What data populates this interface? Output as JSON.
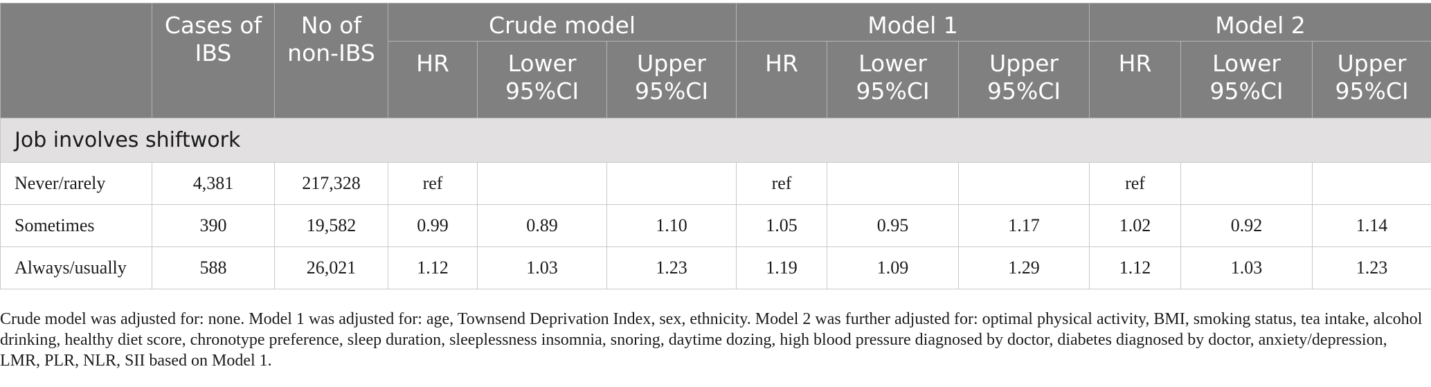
{
  "table": {
    "header": {
      "row_label_blank": "",
      "cases_of_ibs": "Cases of IBS",
      "no_of_non_ibs": "No of non-IBS",
      "models": [
        "Crude model",
        "Model 1",
        "Model 2"
      ],
      "sub_columns": [
        "HR",
        "Lower 95%CI",
        "Upper 95%CI"
      ]
    },
    "section_title": "Job involves shiftwork",
    "rows": [
      {
        "label": "Never/rarely",
        "cases": "4,381",
        "non_ibs": "217,328",
        "crude": [
          "ref",
          "",
          ""
        ],
        "model1": [
          "ref",
          "",
          ""
        ],
        "model2": [
          "ref",
          "",
          ""
        ]
      },
      {
        "label": "Sometimes",
        "cases": "390",
        "non_ibs": "19,582",
        "crude": [
          "0.99",
          "0.89",
          "1.10"
        ],
        "model1": [
          "1.05",
          "0.95",
          "1.17"
        ],
        "model2": [
          "1.02",
          "0.92",
          "1.14"
        ]
      },
      {
        "label": "Always/usually",
        "cases": "588",
        "non_ibs": "26,021",
        "crude": [
          "1.12",
          "1.03",
          "1.23"
        ],
        "model1": [
          "1.19",
          "1.09",
          "1.29"
        ],
        "model2": [
          "1.12",
          "1.03",
          "1.23"
        ]
      }
    ]
  },
  "footnote": "Crude model was adjusted for: none. Model 1 was adjusted for: age, Townsend Deprivation Index, sex, ethnicity. Model 2 was further adjusted for: optimal physical activity, BMI, smoking status, tea intake, alcohol drinking, healthy diet score, chronotype preference, sleep duration, sleeplessness insomnia, snoring, daytime dozing, high blood pressure diagnosed by doctor, diabetes diagnosed by doctor, anxiety/depression, LMR, PLR, NLR, SII based on Model 1.",
  "colors": {
    "header_bg": "#808080",
    "header_text": "#ffffff",
    "section_bg": "#e2e0e0",
    "grid": "#c8c8c8"
  }
}
